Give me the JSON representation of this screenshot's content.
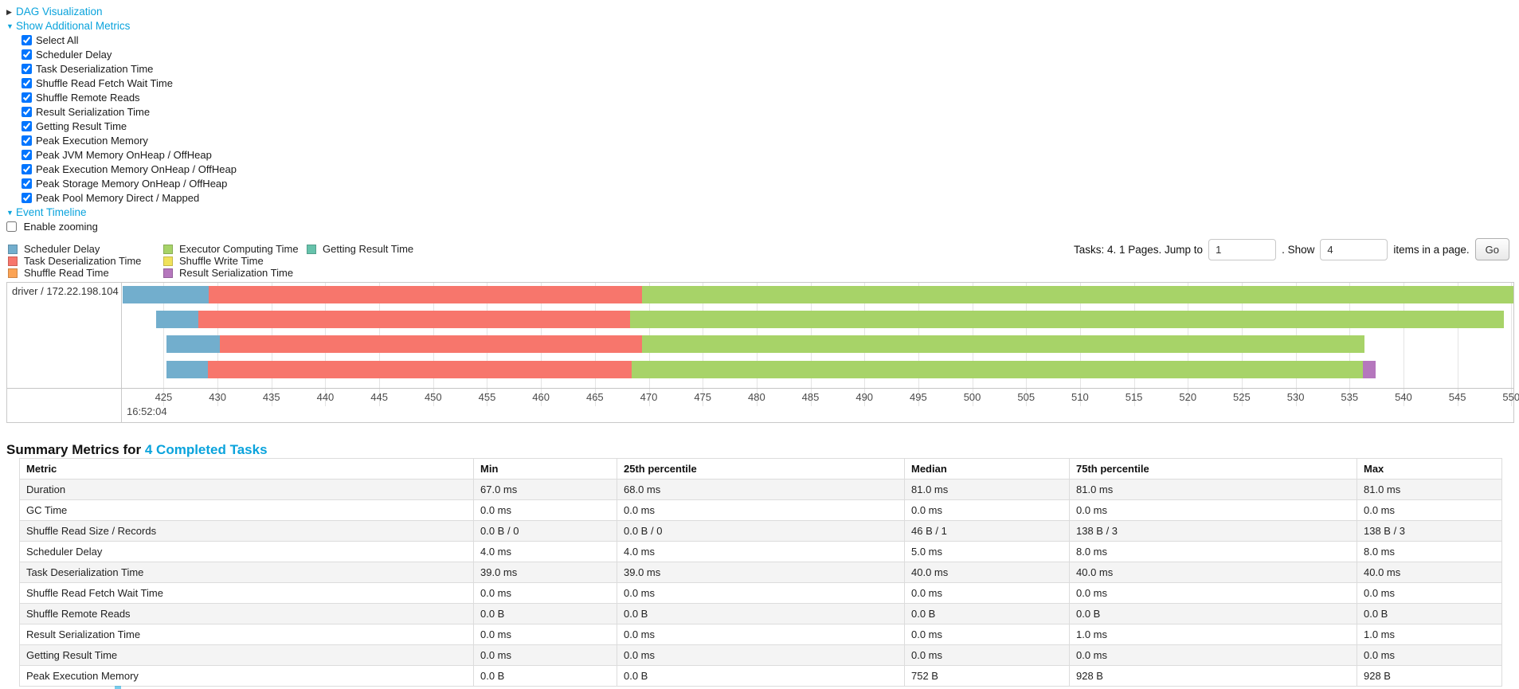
{
  "colors": {
    "link": "#0aa3dc",
    "scheduler_delay": "#72aecd",
    "task_deserialization": "#f7766c",
    "shuffle_read": "#fba355",
    "executor_computing": "#a7d368",
    "shuffle_write": "#f0e25c",
    "result_serialization": "#b577bd",
    "getting_result": "#66c2ab"
  },
  "controls": {
    "dag_label": "DAG Visualization",
    "metrics_label": "Show Additional Metrics",
    "metric_checkboxes": [
      {
        "label": "Select All",
        "checked": true
      },
      {
        "label": "Scheduler Delay",
        "checked": true
      },
      {
        "label": "Task Deserialization Time",
        "checked": true
      },
      {
        "label": "Shuffle Read Fetch Wait Time",
        "checked": true
      },
      {
        "label": "Shuffle Remote Reads",
        "checked": true
      },
      {
        "label": "Result Serialization Time",
        "checked": true
      },
      {
        "label": "Getting Result Time",
        "checked": true
      },
      {
        "label": "Peak Execution Memory",
        "checked": true
      },
      {
        "label": "Peak JVM Memory OnHeap / OffHeap",
        "checked": true
      },
      {
        "label": "Peak Execution Memory OnHeap / OffHeap",
        "checked": true
      },
      {
        "label": "Peak Storage Memory OnHeap / OffHeap",
        "checked": true
      },
      {
        "label": "Peak Pool Memory Direct / Mapped",
        "checked": true
      }
    ],
    "event_timeline_label": "Event Timeline",
    "enable_zooming": {
      "label": "Enable zooming",
      "checked": false
    }
  },
  "pagination": {
    "prefix": "Tasks: 4. 1 Pages. Jump to",
    "jump_value": "1",
    "middle": ". Show",
    "show_value": "4",
    "suffix": "items in a page.",
    "go_label": "Go"
  },
  "timeline": {
    "row_label": "driver / 172.22.198.104",
    "legend_columns": [
      [
        {
          "key": "scheduler_delay",
          "label": "Scheduler Delay"
        },
        {
          "key": "task_deserialization",
          "label": "Task Deserialization Time"
        },
        {
          "key": "shuffle_read",
          "label": "Shuffle Read Time"
        }
      ],
      [
        {
          "key": "executor_computing",
          "label": "Executor Computing Time"
        },
        {
          "key": "shuffle_write",
          "label": "Shuffle Write Time"
        },
        {
          "key": "result_serialization",
          "label": "Result Serialization Time"
        }
      ],
      [
        {
          "key": "getting_result",
          "label": "Getting Result Time"
        }
      ]
    ]
  },
  "chart_data": {
    "type": "timeline-gantt",
    "title": "Event Timeline",
    "axis": {
      "min": 421.2,
      "max": 550.2,
      "tick_start": 425,
      "tick_step": 5,
      "tick_end": 550,
      "unit": "ms",
      "time_label": "16:52:04"
    },
    "rows": [
      "driver / 172.22.198.104"
    ],
    "tasks": [
      {
        "segments": [
          {
            "key": "scheduler_delay",
            "start": 421.2,
            "end": 429.2
          },
          {
            "key": "task_deserialization",
            "start": 429.2,
            "end": 469.4
          },
          {
            "key": "executor_computing",
            "start": 469.4,
            "end": 550.2
          }
        ]
      },
      {
        "segments": [
          {
            "key": "scheduler_delay",
            "start": 424.3,
            "end": 428.2
          },
          {
            "key": "task_deserialization",
            "start": 428.2,
            "end": 468.3
          },
          {
            "key": "executor_computing",
            "start": 468.3,
            "end": 549.3
          }
        ]
      },
      {
        "segments": [
          {
            "key": "scheduler_delay",
            "start": 425.3,
            "end": 430.2
          },
          {
            "key": "task_deserialization",
            "start": 430.2,
            "end": 469.4
          },
          {
            "key": "executor_computing",
            "start": 469.4,
            "end": 536.4
          }
        ]
      },
      {
        "segments": [
          {
            "key": "scheduler_delay",
            "start": 425.3,
            "end": 429.1
          },
          {
            "key": "task_deserialization",
            "start": 429.1,
            "end": 468.4
          },
          {
            "key": "executor_computing",
            "start": 468.4,
            "end": 536.2
          },
          {
            "key": "result_serialization",
            "start": 536.2,
            "end": 537.4
          }
        ]
      }
    ]
  },
  "summary": {
    "title_prefix": "Summary Metrics for",
    "title_link": "4 Completed Tasks",
    "table": {
      "columns": [
        "Metric",
        "Min",
        "25th percentile",
        "Median",
        "75th percentile",
        "Max"
      ],
      "rows": [
        [
          "Duration",
          "67.0 ms",
          "68.0 ms",
          "81.0 ms",
          "81.0 ms",
          "81.0 ms"
        ],
        [
          "GC Time",
          "0.0 ms",
          "0.0 ms",
          "0.0 ms",
          "0.0 ms",
          "0.0 ms"
        ],
        [
          "Shuffle Read Size / Records",
          "0.0 B / 0",
          "0.0 B / 0",
          "46 B / 1",
          "138 B / 3",
          "138 B / 3"
        ],
        [
          "Scheduler Delay",
          "4.0 ms",
          "4.0 ms",
          "5.0 ms",
          "8.0 ms",
          "8.0 ms"
        ],
        [
          "Task Deserialization Time",
          "39.0 ms",
          "39.0 ms",
          "40.0 ms",
          "40.0 ms",
          "40.0 ms"
        ],
        [
          "Shuffle Read Fetch Wait Time",
          "0.0 ms",
          "0.0 ms",
          "0.0 ms",
          "0.0 ms",
          "0.0 ms"
        ],
        [
          "Shuffle Remote Reads",
          "0.0 B",
          "0.0 B",
          "0.0 B",
          "0.0 B",
          "0.0 B"
        ],
        [
          "Result Serialization Time",
          "0.0 ms",
          "0.0 ms",
          "0.0 ms",
          "1.0 ms",
          "1.0 ms"
        ],
        [
          "Getting Result Time",
          "0.0 ms",
          "0.0 ms",
          "0.0 ms",
          "0.0 ms",
          "0.0 ms"
        ],
        [
          "Peak Execution Memory",
          "0.0 B",
          "0.0 B",
          "752 B",
          "928 B",
          "928 B"
        ]
      ]
    }
  }
}
